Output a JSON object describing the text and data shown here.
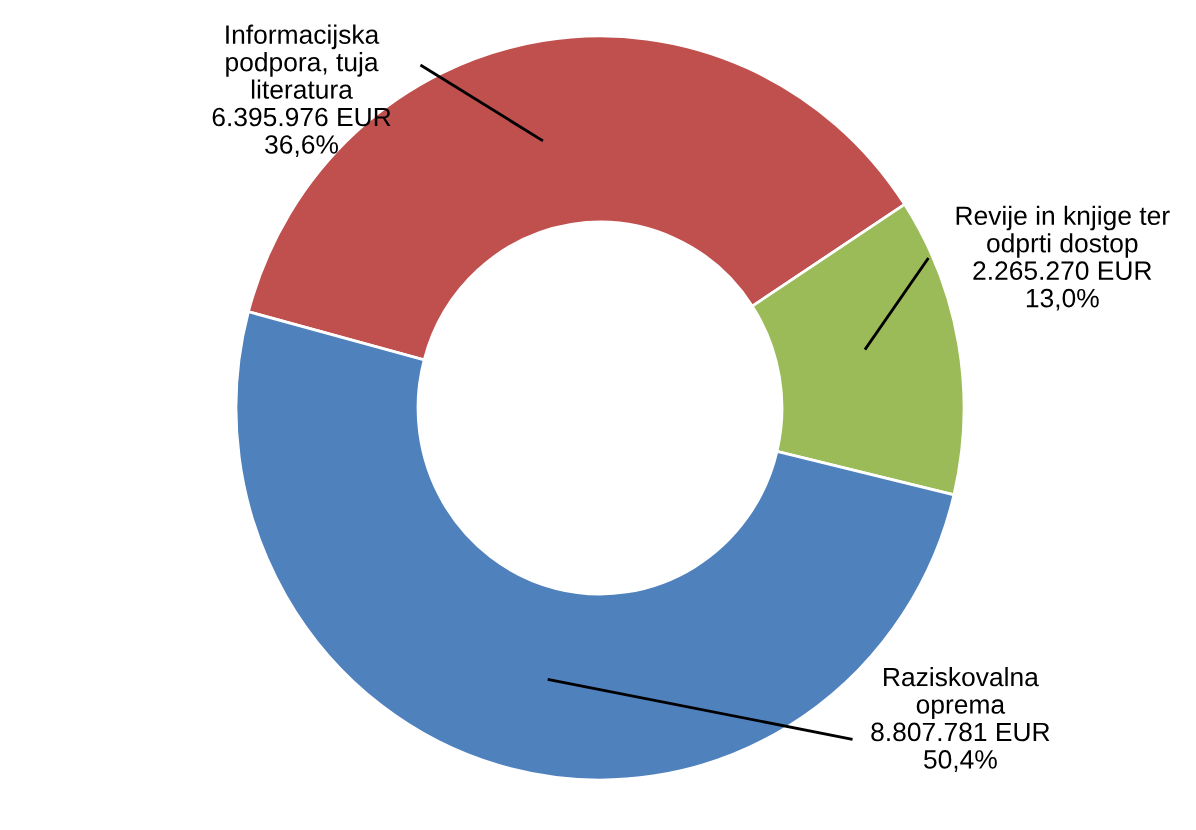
{
  "chart_data": {
    "type": "donut",
    "categories": [
      "Informacijska\npodpora, tuja\nliteratura",
      "Revije in knjige ter\nodprti dostop",
      "Raziskovalna\noprema"
    ],
    "values": [
      6395976,
      2265270,
      8807781
    ],
    "value_labels": [
      "6.395.976 EUR\n36,6%",
      "2.265.270 EUR\n13,0%",
      "8.807.781 EUR\n50,4%"
    ],
    "colors": [
      "#c0504d",
      "#9bbb59",
      "#4f81bd"
    ],
    "legend": false
  }
}
